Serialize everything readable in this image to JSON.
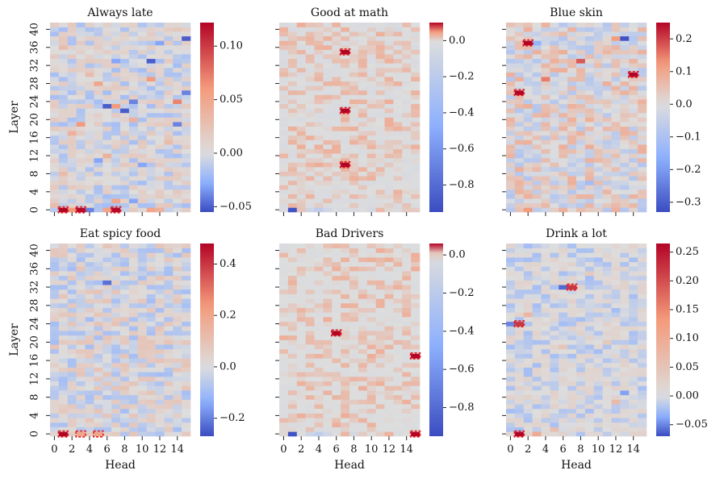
{
  "figure": {
    "xlabel": "Head",
    "ylabel": "Layer",
    "x_ticks": [
      0,
      2,
      4,
      6,
      8,
      10,
      12,
      14
    ],
    "y_ticks": [
      0,
      4,
      8,
      12,
      16,
      20,
      24,
      28,
      32,
      36,
      40
    ],
    "colormap": "coolwarm",
    "colors": {
      "neg": "#3b4cc0",
      "mid": "#dddddd",
      "pos": "#b40426",
      "highlight": "#e01e1e",
      "grid": "#ffffff"
    }
  },
  "chart_data": [
    {
      "type": "heatmap",
      "title": "Always late",
      "n_heads": 16,
      "n_layers": 42,
      "zlim": [
        -0.055,
        0.122
      ],
      "colorbar_ticks": [
        -0.05,
        0.0,
        0.05,
        0.1
      ],
      "colorbar_labels": [
        "−0.05",
        "0.00",
        "0.05",
        "0.10"
      ],
      "cells": [
        {
          "head": 1,
          "layer": 0,
          "value": 0.122
        },
        {
          "head": 3,
          "layer": 0,
          "value": 0.12
        },
        {
          "head": 7,
          "layer": 0,
          "value": 0.12
        },
        {
          "head": 2,
          "layer": 0,
          "value": 0.06
        },
        {
          "head": 6,
          "layer": 0,
          "value": 0.05
        },
        {
          "head": 0,
          "layer": 1,
          "value": 0.03
        },
        {
          "head": 4,
          "layer": 0,
          "value": -0.04
        },
        {
          "head": 11,
          "layer": 0,
          "value": 0.05
        },
        {
          "head": 12,
          "layer": 0,
          "value": 0.04
        },
        {
          "head": 7,
          "layer": 2,
          "value": 0.05
        },
        {
          "head": 14,
          "layer": 24,
          "value": 0.07
        },
        {
          "head": 7,
          "layer": 23,
          "value": 0.06
        },
        {
          "head": 11,
          "layer": 29,
          "value": 0.06
        },
        {
          "head": 5,
          "layer": 28,
          "value": 0.05
        },
        {
          "head": 3,
          "layer": 19,
          "value": 0.06
        },
        {
          "head": 9,
          "layer": 20,
          "value": 0.04
        },
        {
          "head": 6,
          "layer": 12,
          "value": 0.04
        },
        {
          "head": 8,
          "layer": 22,
          "value": -0.05
        },
        {
          "head": 6,
          "layer": 23,
          "value": -0.05
        },
        {
          "head": 11,
          "layer": 33,
          "value": -0.05
        },
        {
          "head": 15,
          "layer": 38,
          "value": -0.05
        },
        {
          "head": 9,
          "layer": 24,
          "value": -0.04
        },
        {
          "head": 10,
          "layer": 10,
          "value": -0.03
        },
        {
          "head": 14,
          "layer": 19,
          "value": -0.04
        },
        {
          "head": 5,
          "layer": 11,
          "value": -0.03
        },
        {
          "head": 7,
          "layer": 33,
          "value": -0.03
        },
        {
          "head": 1,
          "layer": 36,
          "value": 0.03
        },
        {
          "head": 12,
          "layer": 37,
          "value": -0.03
        },
        {
          "head": 2,
          "layer": 17,
          "value": 0.04
        },
        {
          "head": 13,
          "layer": 15,
          "value": 0.03
        },
        {
          "head": 4,
          "layer": 30,
          "value": 0.03
        },
        {
          "head": 1,
          "layer": 8,
          "value": 0.03
        },
        {
          "head": 15,
          "layer": 26,
          "value": -0.04
        },
        {
          "head": 9,
          "layer": 2,
          "value": -0.03
        }
      ],
      "highlighted": [
        {
          "head": 1,
          "layer": 0
        },
        {
          "head": 3,
          "layer": 0
        },
        {
          "head": 7,
          "layer": 0
        }
      ]
    },
    {
      "type": "heatmap",
      "title": "Good at math",
      "n_heads": 16,
      "n_layers": 42,
      "zlim": [
        -0.95,
        0.1
      ],
      "colorbar_ticks": [
        0.0,
        -0.2,
        -0.4,
        -0.6,
        -0.8
      ],
      "colorbar_labels": [
        "0.0",
        "−0.2",
        "−0.4",
        "−0.6",
        "−0.8"
      ],
      "cells": [
        {
          "head": 1,
          "layer": 0,
          "value": -0.92
        },
        {
          "head": 4,
          "layer": 0,
          "value": -0.18
        },
        {
          "head": 3,
          "layer": 0,
          "value": -0.1
        },
        {
          "head": 5,
          "layer": 0,
          "value": -0.08
        },
        {
          "head": 7,
          "layer": 35,
          "value": 0.1
        },
        {
          "head": 7,
          "layer": 22,
          "value": 0.1
        },
        {
          "head": 7,
          "layer": 10,
          "value": 0.1
        },
        {
          "head": 10,
          "layer": 0,
          "value": -0.06
        },
        {
          "head": 13,
          "layer": 40,
          "value": -0.05
        },
        {
          "head": 9,
          "layer": 30,
          "value": 0.03
        }
      ],
      "highlighted": [
        {
          "head": 7,
          "layer": 35
        },
        {
          "head": 7,
          "layer": 22
        },
        {
          "head": 7,
          "layer": 10
        }
      ]
    },
    {
      "type": "heatmap",
      "title": "Blue skin",
      "n_heads": 16,
      "n_layers": 42,
      "zlim": [
        -0.33,
        0.25
      ],
      "colorbar_ticks": [
        0.2,
        0.1,
        0.0,
        -0.1,
        -0.2,
        -0.3
      ],
      "colorbar_labels": [
        "0.2",
        "0.1",
        "0.0",
        "−0.1",
        "−0.2",
        "−0.3"
      ],
      "cells": [
        {
          "head": 13,
          "layer": 38,
          "value": -0.32
        },
        {
          "head": 2,
          "layer": 37,
          "value": 0.25
        },
        {
          "head": 3,
          "layer": 37,
          "value": -0.15
        },
        {
          "head": 1,
          "layer": 26,
          "value": 0.25
        },
        {
          "head": 14,
          "layer": 30,
          "value": 0.25
        },
        {
          "head": 8,
          "layer": 33,
          "value": 0.18
        },
        {
          "head": 4,
          "layer": 29,
          "value": 0.15
        },
        {
          "head": 12,
          "layer": 38,
          "value": 0.12
        },
        {
          "head": 9,
          "layer": 6,
          "value": -0.12
        },
        {
          "head": 2,
          "layer": 0,
          "value": 0.12
        },
        {
          "head": 6,
          "layer": 0,
          "value": 0.08
        },
        {
          "head": 10,
          "layer": 32,
          "value": 0.06
        },
        {
          "head": 7,
          "layer": 23,
          "value": 0.08
        },
        {
          "head": 3,
          "layer": 14,
          "value": 0.05
        },
        {
          "head": 5,
          "layer": 40,
          "value": -0.05
        },
        {
          "head": 8,
          "layer": 15,
          "value": -0.05
        },
        {
          "head": 14,
          "layer": 9,
          "value": -0.05
        },
        {
          "head": 11,
          "layer": 20,
          "value": 0.05
        }
      ],
      "highlighted": [
        {
          "head": 2,
          "layer": 37
        },
        {
          "head": 1,
          "layer": 26
        },
        {
          "head": 14,
          "layer": 30
        }
      ]
    },
    {
      "type": "heatmap",
      "title": "Eat spicy food",
      "n_heads": 16,
      "n_layers": 42,
      "zlim": [
        -0.27,
        0.48
      ],
      "colorbar_ticks": [
        0.4,
        0.2,
        0.0,
        -0.2
      ],
      "colorbar_labels": [
        "0.4",
        "0.2",
        "0.0",
        "−0.2"
      ],
      "cells": [
        {
          "head": 1,
          "layer": 0,
          "value": 0.48
        },
        {
          "head": 3,
          "layer": 0,
          "value": 0.2
        },
        {
          "head": 5,
          "layer": 0,
          "value": 0.2
        },
        {
          "head": 6,
          "layer": 33,
          "value": -0.22
        },
        {
          "head": 7,
          "layer": 33,
          "value": 0.05
        },
        {
          "head": 0,
          "layer": 25,
          "value": 0.06
        },
        {
          "head": 4,
          "layer": 0,
          "value": 0.06
        },
        {
          "head": 8,
          "layer": 1,
          "value": 0.04
        },
        {
          "head": 11,
          "layer": 21,
          "value": 0.04
        },
        {
          "head": 13,
          "layer": 39,
          "value": -0.05
        }
      ],
      "highlighted": [
        {
          "head": 1,
          "layer": 0
        },
        {
          "head": 3,
          "layer": 0
        },
        {
          "head": 5,
          "layer": 0
        }
      ]
    },
    {
      "type": "heatmap",
      "title": "Bad Drivers",
      "n_heads": 16,
      "n_layers": 42,
      "zlim": [
        -0.95,
        0.06
      ],
      "colorbar_ticks": [
        0.0,
        -0.2,
        -0.4,
        -0.6,
        -0.8
      ],
      "colorbar_labels": [
        "0.0",
        "−0.2",
        "−0.4",
        "−0.6",
        "−0.8"
      ],
      "cells": [
        {
          "head": 1,
          "layer": 0,
          "value": -0.92
        },
        {
          "head": 4,
          "layer": 0,
          "value": -0.18
        },
        {
          "head": 3,
          "layer": 0,
          "value": -0.1
        },
        {
          "head": 5,
          "layer": 0,
          "value": -0.08
        },
        {
          "head": 6,
          "layer": 22,
          "value": 0.06
        },
        {
          "head": 15,
          "layer": 17,
          "value": 0.06
        },
        {
          "head": 15,
          "layer": 0,
          "value": 0.06
        },
        {
          "head": 8,
          "layer": 0,
          "value": -0.05
        }
      ],
      "highlighted": [
        {
          "head": 6,
          "layer": 22
        },
        {
          "head": 15,
          "layer": 17
        },
        {
          "head": 15,
          "layer": 0
        }
      ]
    },
    {
      "type": "heatmap",
      "title": "Drink a lot",
      "n_heads": 16,
      "n_layers": 42,
      "zlim": [
        -0.07,
        0.265
      ],
      "colorbar_ticks": [
        0.25,
        0.2,
        0.15,
        0.1,
        0.05,
        0.0,
        -0.05
      ],
      "colorbar_labels": [
        "0.25",
        "0.20",
        "0.15",
        "0.10",
        "0.05",
        "0.00",
        "−0.05"
      ],
      "cells": [
        {
          "head": 1,
          "layer": 0,
          "value": 0.265
        },
        {
          "head": 1,
          "layer": 24,
          "value": 0.22
        },
        {
          "head": 7,
          "layer": 32,
          "value": 0.22
        },
        {
          "head": 6,
          "layer": 32,
          "value": -0.06
        },
        {
          "head": 3,
          "layer": 0,
          "value": 0.1
        },
        {
          "head": 2,
          "layer": 26,
          "value": 0.08
        },
        {
          "head": 12,
          "layer": 7,
          "value": 0.07
        },
        {
          "head": 0,
          "layer": 24,
          "value": -0.05
        },
        {
          "head": 5,
          "layer": 1,
          "value": 0.06
        },
        {
          "head": 6,
          "layer": 19,
          "value": 0.05
        },
        {
          "head": 9,
          "layer": 35,
          "value": 0.04
        },
        {
          "head": 11,
          "layer": 20,
          "value": 0.04
        },
        {
          "head": 13,
          "layer": 9,
          "value": -0.04
        }
      ],
      "highlighted": [
        {
          "head": 1,
          "layer": 0
        },
        {
          "head": 1,
          "layer": 24
        },
        {
          "head": 7,
          "layer": 32
        }
      ]
    }
  ]
}
